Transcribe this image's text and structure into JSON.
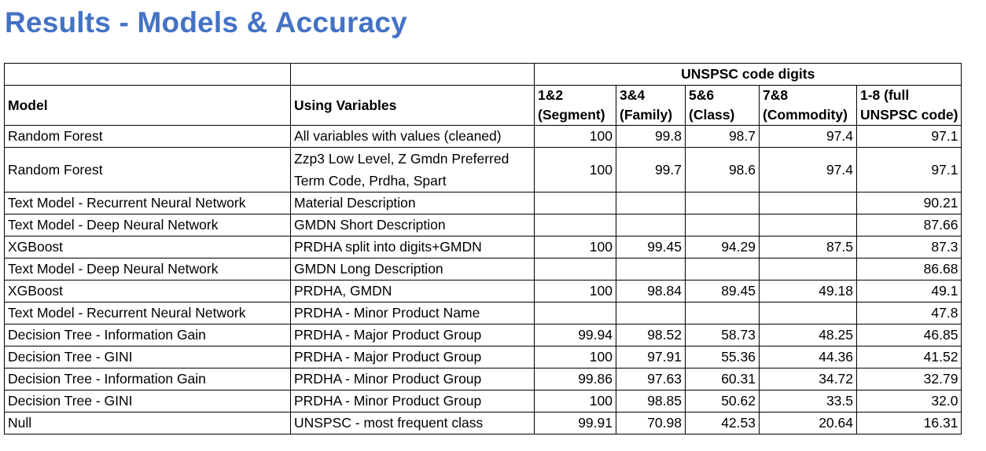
{
  "title": "Results - Models & Accuracy",
  "header": {
    "group": "UNSPSC code digits",
    "model": "Model",
    "variables": "Using Variables",
    "c12_a": "1&2",
    "c12_b": "(Segment)",
    "c34_a": "3&4",
    "c34_b": "(Family)",
    "c56_a": "5&6",
    "c56_b": "(Class)",
    "c78_a": "7&8",
    "c78_b": "(Commodity)",
    "c18_a": "1-8 (full",
    "c18_b": "UNSPSC code)"
  },
  "rows": [
    {
      "model": "Random Forest",
      "vars": "All variables with values (cleaned)",
      "v12": "100",
      "v34": "99.8",
      "v56": "98.7",
      "v78": "97.4",
      "v18": "97.1"
    },
    {
      "model": "Random Forest",
      "vars": "Zzp3 Low Level, Z Gmdn Preferred Term Code, Prdha, Spart",
      "v12": "100",
      "v34": "99.7",
      "v56": "98.6",
      "v78": "97.4",
      "v18": "97.1"
    },
    {
      "model": "Text Model - Recurrent Neural Network",
      "vars": "Material Description",
      "v12": "",
      "v34": "",
      "v56": "",
      "v78": "",
      "v18": "90.21"
    },
    {
      "model": "Text Model - Deep Neural Network",
      "vars": "GMDN Short Description",
      "v12": "",
      "v34": "",
      "v56": "",
      "v78": "",
      "v18": "87.66"
    },
    {
      "model": "XGBoost",
      "vars": "PRDHA split into digits+GMDN",
      "v12": "100",
      "v34": "99.45",
      "v56": "94.29",
      "v78": "87.5",
      "v18": "87.3"
    },
    {
      "model": "Text Model - Deep Neural Network",
      "vars": "GMDN Long Description",
      "v12": "",
      "v34": "",
      "v56": "",
      "v78": "",
      "v18": "86.68"
    },
    {
      "model": "XGBoost",
      "vars": "PRDHA, GMDN",
      "v12": "100",
      "v34": "98.84",
      "v56": "89.45",
      "v78": "49.18",
      "v18": "49.1"
    },
    {
      "model": "Text Model - Recurrent Neural Network",
      "vars": "PRDHA - Minor Product Name",
      "v12": "",
      "v34": "",
      "v56": "",
      "v78": "",
      "v18": "47.8"
    },
    {
      "model": "Decision Tree - Information Gain",
      "vars": "PRDHA - Major Product Group",
      "v12": "99.94",
      "v34": "98.52",
      "v56": "58.73",
      "v78": "48.25",
      "v18": "46.85"
    },
    {
      "model": "Decision Tree - GINI",
      "vars": "PRDHA - Major Product Group",
      "v12": "100",
      "v34": "97.91",
      "v56": "55.36",
      "v78": "44.36",
      "v18": "41.52"
    },
    {
      "model": "Decision Tree - Information Gain",
      "vars": "PRDHA - Minor Product Group",
      "v12": "99.86",
      "v34": "97.63",
      "v56": "60.31",
      "v78": "34.72",
      "v18": "32.79"
    },
    {
      "model": "Decision Tree - GINI",
      "vars": "PRDHA - Minor Product Group",
      "v12": "100",
      "v34": "98.85",
      "v56": "50.62",
      "v78": "33.5",
      "v18": "32.0"
    },
    {
      "model": "Null",
      "vars": "UNSPSC - most frequent class",
      "v12": "99.91",
      "v34": "70.98",
      "v56": "42.53",
      "v78": "20.64",
      "v18": "16.31"
    }
  ]
}
